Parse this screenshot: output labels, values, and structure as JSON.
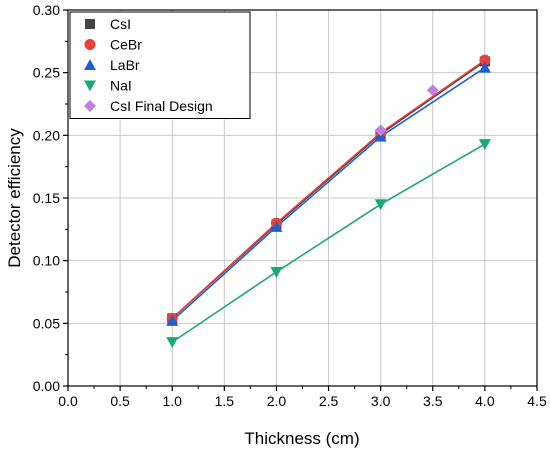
{
  "chart_data": {
    "type": "line",
    "title": "",
    "xlabel": "Thickness (cm)",
    "ylabel": "Detector efficiency",
    "xlim": [
      0.0,
      4.5
    ],
    "ylim": [
      0.0,
      0.3
    ],
    "xticks": [
      "0.0",
      "0.5",
      "1.0",
      "1.5",
      "2.0",
      "2.5",
      "3.0",
      "3.5",
      "4.0",
      "4.5"
    ],
    "yticks": [
      "0.00",
      "0.05",
      "0.10",
      "0.15",
      "0.20",
      "0.25",
      "0.30"
    ],
    "grid": true,
    "legend_position": "top-left",
    "series": [
      {
        "name": "CsI",
        "marker": "square",
        "color": "#444444",
        "line": true,
        "x": [
          1.0,
          2.0,
          3.0,
          4.0
        ],
        "y": [
          0.054,
          0.129,
          0.201,
          0.259
        ]
      },
      {
        "name": "CeBr",
        "marker": "circle",
        "color": "#e8403a",
        "line": true,
        "x": [
          1.0,
          2.0,
          3.0,
          4.0
        ],
        "y": [
          0.054,
          0.13,
          0.202,
          0.26
        ]
      },
      {
        "name": "LaBr",
        "marker": "triangle-up",
        "color": "#1f5fd0",
        "line": true,
        "x": [
          1.0,
          2.0,
          3.0,
          4.0
        ],
        "y": [
          0.052,
          0.127,
          0.199,
          0.254
        ]
      },
      {
        "name": "NaI",
        "marker": "triangle-down",
        "color": "#1aab74",
        "line": true,
        "x": [
          1.0,
          2.0,
          3.0,
          4.0
        ],
        "y": [
          0.035,
          0.091,
          0.145,
          0.193
        ]
      },
      {
        "name": "CsI Final Design",
        "marker": "diamond",
        "color": "#c27fe0",
        "line": false,
        "x": [
          3.0,
          3.5
        ],
        "y": [
          0.204,
          0.236
        ]
      }
    ]
  }
}
